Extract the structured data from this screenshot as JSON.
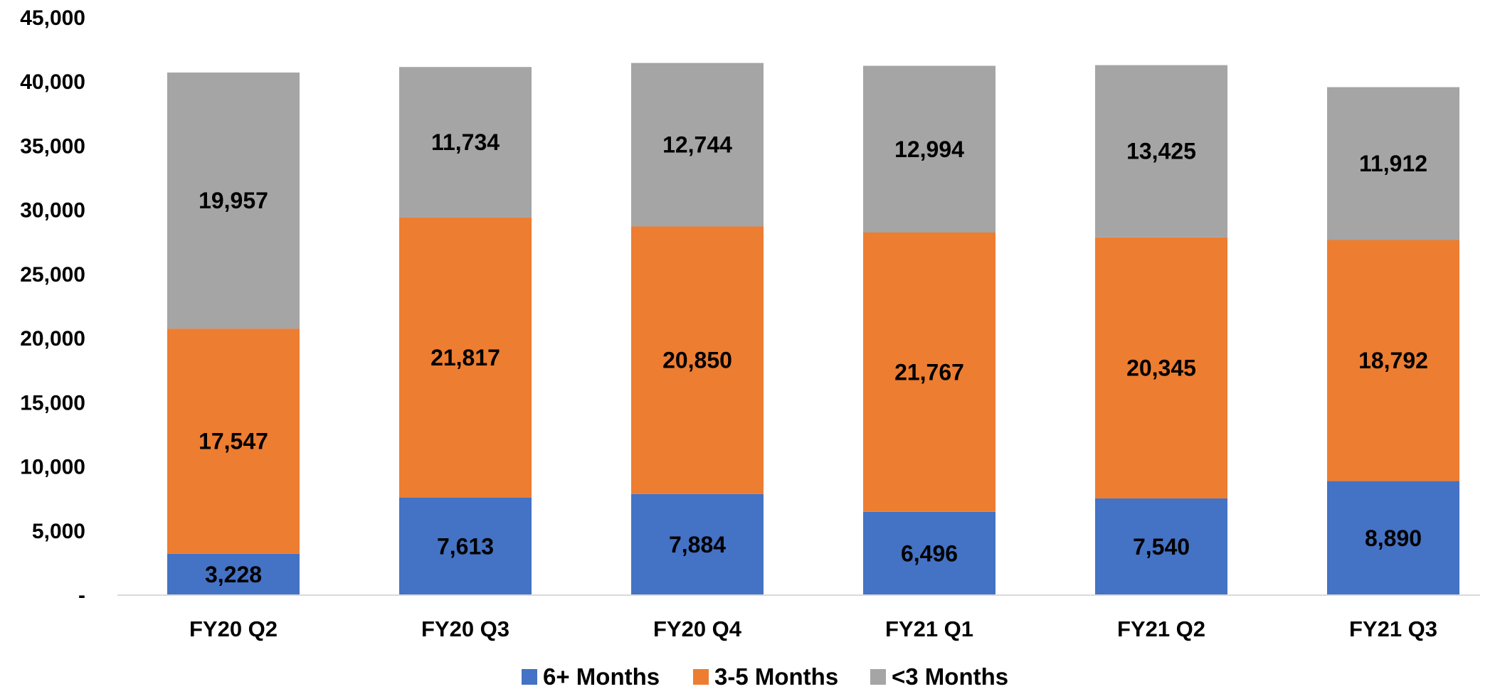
{
  "chart_data": {
    "type": "bar",
    "stacked": true,
    "title": "",
    "xlabel": "",
    "ylabel": "",
    "categories": [
      "FY20 Q2",
      "FY20 Q3",
      "FY20 Q4",
      "FY21 Q1",
      "FY21 Q2",
      "FY21 Q3"
    ],
    "series": [
      {
        "name": "6+ Months",
        "color": "#4472C4",
        "values": [
          3228,
          7613,
          7884,
          6496,
          7540,
          8890
        ],
        "labels": [
          "3,228",
          "7,613",
          "7,884",
          "6,496",
          "7,540",
          "8,890"
        ]
      },
      {
        "name": "3-5 Months",
        "color": "#ED7D31",
        "values": [
          17547,
          21817,
          20850,
          21767,
          20345,
          18792
        ],
        "labels": [
          "17,547",
          "21,817",
          "20,850",
          "21,767",
          "20,345",
          "18,792"
        ]
      },
      {
        "name": "<3 Months",
        "color": "#A5A5A5",
        "values": [
          19957,
          11734,
          12744,
          12994,
          13425,
          11912
        ],
        "labels": [
          "19,957",
          "11,734",
          "12,744",
          "12,994",
          "13,425",
          "11,912"
        ]
      }
    ],
    "ylim": [
      0,
      45000
    ],
    "yticks": [
      0,
      5000,
      10000,
      15000,
      20000,
      25000,
      30000,
      35000,
      40000,
      45000
    ],
    "ytick_labels": [
      "-",
      "5,000",
      "10,000",
      "15,000",
      "20,000",
      "25,000",
      "30,000",
      "35,000",
      "40,000",
      "45,000"
    ],
    "grid": false,
    "legend_position": "bottom-center"
  }
}
